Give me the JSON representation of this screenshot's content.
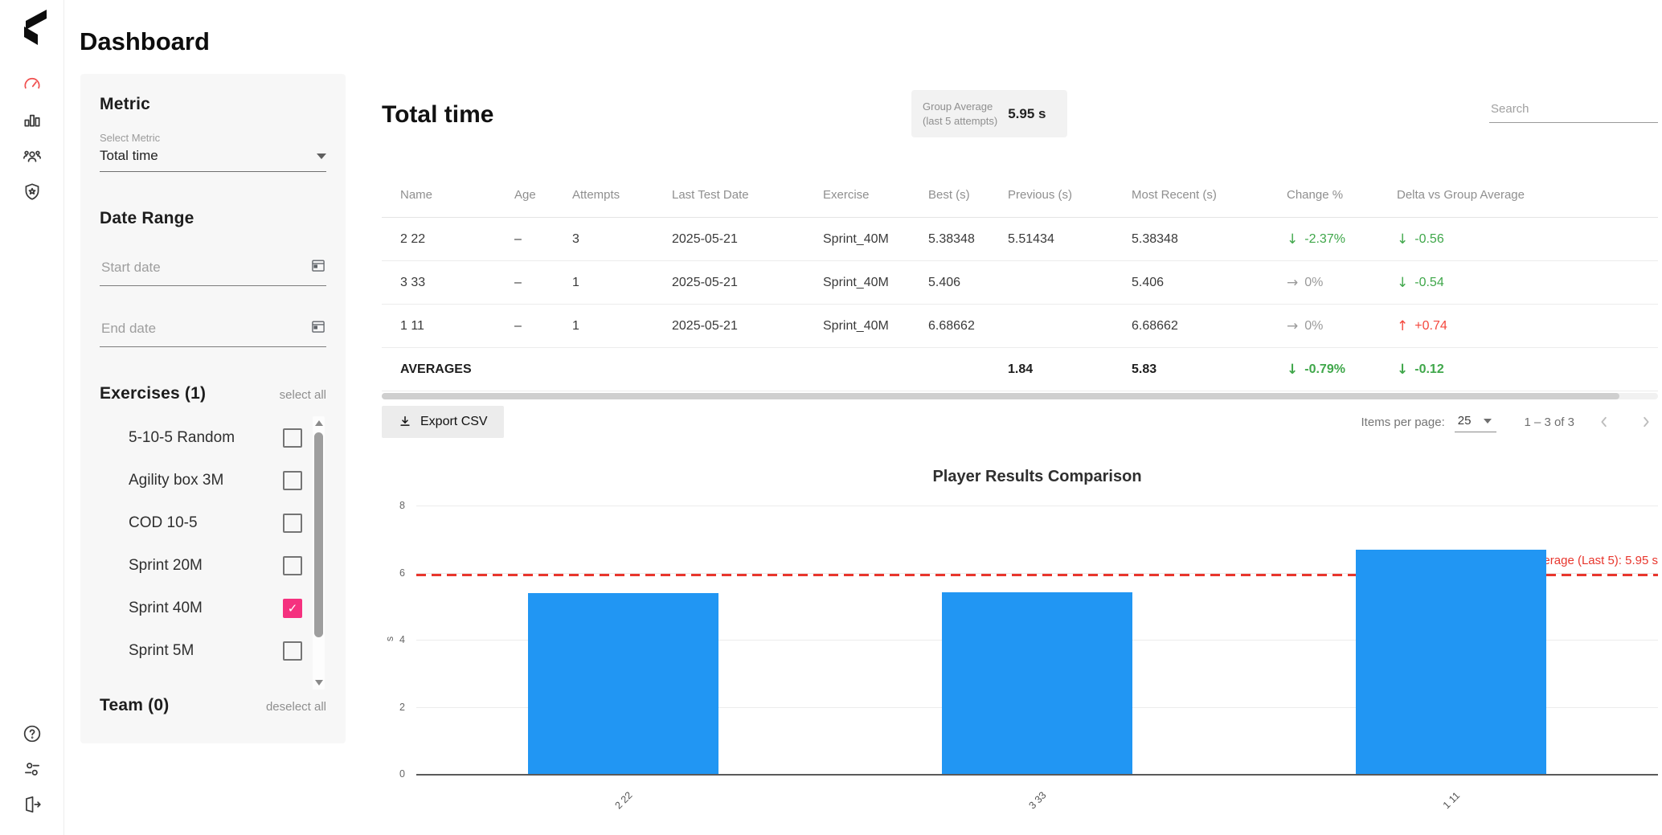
{
  "app": {
    "title": "Dashboard"
  },
  "sidebar": {
    "active_color": "#f0504f",
    "nav_icons": [
      "gauge-icon",
      "bar-chart-icon",
      "team-icon",
      "shield-icon"
    ],
    "footer_icons": [
      "help-icon",
      "preferences-icon",
      "logout-icon"
    ]
  },
  "filters": {
    "metric": {
      "heading": "Metric",
      "select_label": "Select Metric",
      "value": "Total time"
    },
    "date_range": {
      "heading": "Date Range",
      "start_placeholder": "Start date",
      "end_placeholder": "End date"
    },
    "exercises": {
      "heading": "Exercises (1)",
      "select_all_label": "select all",
      "checked_color": "#f5317f",
      "items": [
        {
          "label": "5-10-5 Random",
          "checked": false
        },
        {
          "label": "Agility box 3M",
          "checked": false
        },
        {
          "label": "COD 10-5",
          "checked": false
        },
        {
          "label": "Sprint 20M",
          "checked": false
        },
        {
          "label": "Sprint 40M",
          "checked": true
        },
        {
          "label": "Sprint 5M",
          "checked": false
        }
      ]
    },
    "team": {
      "heading": "Team (0)",
      "deselect_all_label": "deselect all"
    }
  },
  "main": {
    "title": "Total time",
    "group_average": {
      "label_line1": "Group Average",
      "label_line2": "(last 5 attempts)",
      "value": "5.95 s"
    },
    "search": {
      "placeholder": "Search"
    },
    "table": {
      "columns": [
        "Name",
        "Age",
        "Attempts",
        "Last Test Date",
        "Exercise",
        "Best (s)",
        "Previous (s)",
        "Most Recent (s)",
        "Change %",
        "Delta vs Group Average"
      ],
      "rows": [
        {
          "name": "2 22",
          "age": "–",
          "attempts": "3",
          "last_test_date": "2025-05-21",
          "exercise": "Sprint_40M",
          "best": "5.38348",
          "previous": "5.51434",
          "most_recent": "5.38348",
          "change_arrow": "↓",
          "change": "-2.37%",
          "change_color": "green",
          "delta_arrow": "↓",
          "delta": "-0.56",
          "delta_color": "green"
        },
        {
          "name": "3 33",
          "age": "–",
          "attempts": "1",
          "last_test_date": "2025-05-21",
          "exercise": "Sprint_40M",
          "best": "5.406",
          "previous": "",
          "most_recent": "5.406",
          "change_arrow": "→",
          "change": "0%",
          "change_color": "gray",
          "delta_arrow": "↓",
          "delta": "-0.54",
          "delta_color": "green"
        },
        {
          "name": "1 11",
          "age": "–",
          "attempts": "1",
          "last_test_date": "2025-05-21",
          "exercise": "Sprint_40M",
          "best": "6.68662",
          "previous": "",
          "most_recent": "6.68662",
          "change_arrow": "→",
          "change": "0%",
          "change_color": "gray",
          "delta_arrow": "↑",
          "delta": "+0.74",
          "delta_color": "red"
        }
      ],
      "averages_row": {
        "label": "AVERAGES",
        "previous": "1.84",
        "most_recent": "5.83",
        "change_arrow": "↓",
        "change": "-0.79%",
        "change_color": "green",
        "delta_arrow": "↓",
        "delta": "-0.12",
        "delta_color": "green"
      }
    },
    "toolbar": {
      "export_label": "Export CSV"
    },
    "pagination": {
      "items_per_page_label": "Items per page:",
      "items_per_page_value": "25",
      "range_label": "1 – 3 of 3"
    }
  },
  "chart_data": {
    "type": "bar",
    "title": "Player Results Comparison",
    "categories": [
      "2 22",
      "3 33",
      "1 11"
    ],
    "values": [
      5.38348,
      5.406,
      6.68662
    ],
    "xlabel": "",
    "ylabel": "s",
    "ylim": [
      0,
      8
    ],
    "yticks": [
      0,
      2,
      4,
      6,
      8
    ],
    "grid": true,
    "legend": false,
    "bar_color": "#2196f3",
    "reference_line": {
      "value": 5.95,
      "label": "Group Average (Last 5): 5.95 s",
      "color": "#e8362d",
      "style": "dashed"
    }
  }
}
